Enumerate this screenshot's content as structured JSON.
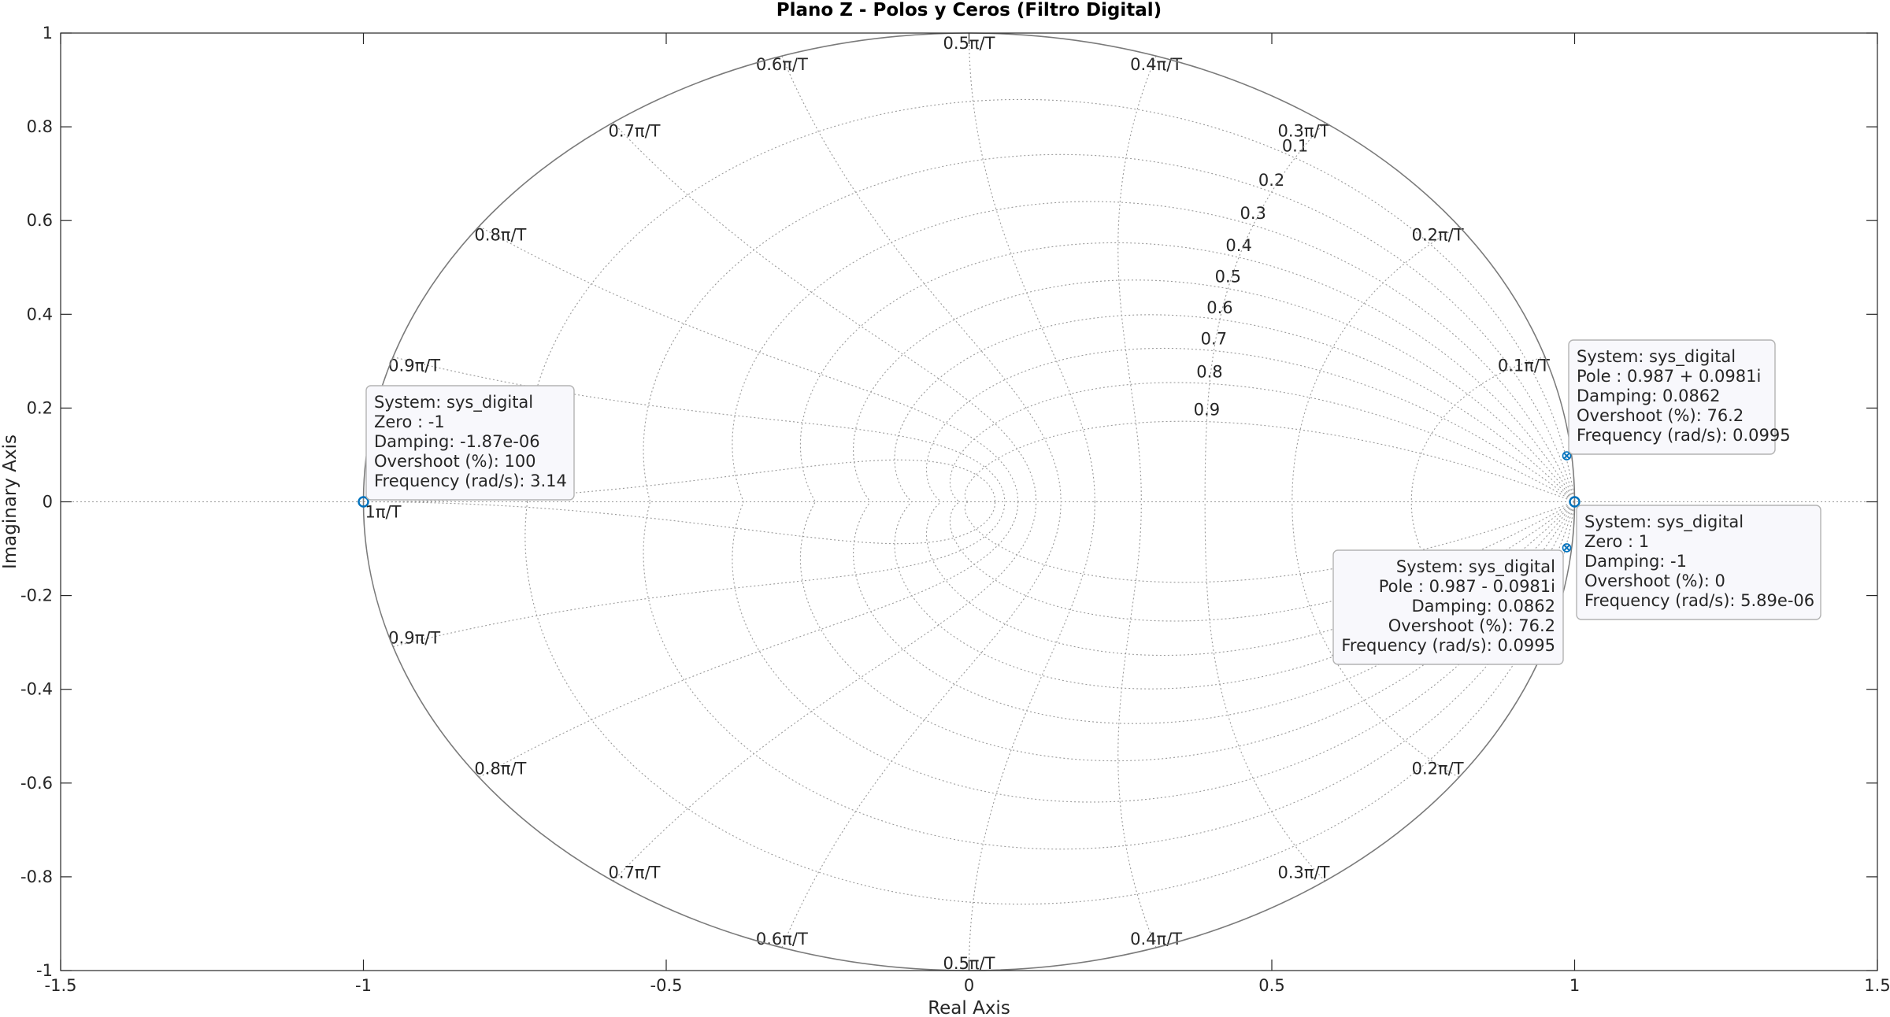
{
  "chart_data": {
    "type": "scatter",
    "title": "Plano Z - Polos y Ceros (Filtro Digital)",
    "xlabel": "Real Axis",
    "ylabel": "Imaginary Axis",
    "xlim": [
      -1.5,
      1.5
    ],
    "ylim": [
      -1,
      1
    ],
    "xticks": [
      -1.5,
      -1,
      -0.5,
      0,
      0.5,
      1,
      1.5
    ],
    "xtick_labels": [
      "-1.5",
      "-1",
      "-0.5",
      "0",
      "0.5",
      "1",
      "1.5"
    ],
    "yticks": [
      1,
      0.8,
      0.6,
      0.4,
      0.2,
      0,
      -0.2,
      -0.4,
      -0.6,
      -0.8,
      -1
    ],
    "ytick_labels": [
      "1",
      "0.8",
      "0.6",
      "0.4",
      "0.2",
      "0",
      "-0.2",
      "-0.4",
      "-0.6",
      "-0.8",
      "-1"
    ],
    "grid": "zgrid",
    "unit_circle": true,
    "damping_lines": [
      0.1,
      0.2,
      0.3,
      0.4,
      0.5,
      0.6,
      0.7,
      0.8,
      0.9
    ],
    "damping_labels": [
      "0.1",
      "0.2",
      "0.3",
      "0.4",
      "0.5",
      "0.6",
      "0.7",
      "0.8",
      "0.9"
    ],
    "natural_freq_lines": [
      0.1,
      0.2,
      0.3,
      0.4,
      0.5,
      0.6,
      0.7,
      0.8,
      0.9,
      1.0
    ],
    "natural_freq_labels_top": [
      "0.1π/T",
      "0.2π/T",
      "0.3π/T",
      "0.4π/T",
      "0.5π/T",
      "0.6π/T",
      "0.7π/T",
      "0.8π/T",
      "0.9π/T",
      "1π/T"
    ],
    "natural_freq_labels_bottom": [
      "0.2π/T",
      "0.3π/T",
      "0.4π/T",
      "0.5π/T",
      "0.6π/T",
      "0.7π/T",
      "0.8π/T",
      "0.9π/T"
    ],
    "series": [
      {
        "name": "sys_digital",
        "color": "#0072bd",
        "poles": [
          {
            "re": 0.987,
            "im": 0.0981
          },
          {
            "re": 0.987,
            "im": -0.0981
          }
        ],
        "zeros": [
          {
            "re": -1,
            "im": 0
          },
          {
            "re": 1,
            "im": 0
          }
        ]
      }
    ],
    "datatips": [
      {
        "anchor": "pole-upper",
        "lines": [
          "System: sys_digital",
          "Pole : 0.987 + 0.0981i",
          "Damping: 0.0862",
          "Overshoot (%): 76.2",
          "Frequency (rad/s): 0.0995"
        ]
      },
      {
        "anchor": "zero-left",
        "lines": [
          "System: sys_digital",
          "Zero : -1",
          "Damping: -1.87e-06",
          "Overshoot (%): 100",
          "Frequency (rad/s): 3.14"
        ]
      },
      {
        "anchor": "zero-right",
        "lines": [
          "System: sys_digital",
          "Zero : 1",
          "Damping: -1",
          "Overshoot (%): 0",
          "Frequency (rad/s): 5.89e-06"
        ]
      },
      {
        "anchor": "pole-lower",
        "lines": [
          "System: sys_digital",
          "Pole : 0.987 - 0.0981i",
          "Damping: 0.0862",
          "Overshoot (%): 76.2",
          "Frequency (rad/s): 0.0995"
        ]
      }
    ]
  }
}
